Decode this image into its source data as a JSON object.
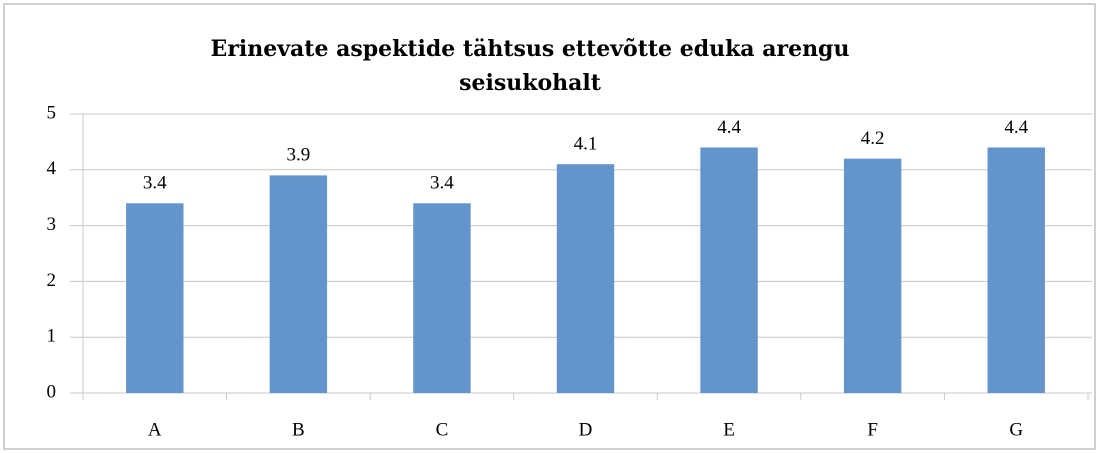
{
  "chart_data": {
    "type": "bar",
    "title": [
      "Erinevate aspektide tähtsus ettevõtte eduka arengu",
      "seisukohalt"
    ],
    "categories": [
      "A",
      "B",
      "C",
      "D",
      "E",
      "F",
      "G"
    ],
    "values": [
      3.4,
      3.9,
      3.4,
      4.1,
      4.4,
      4.2,
      4.4
    ],
    "color": "#6395cc",
    "ylim": [
      0,
      5
    ],
    "yticks": [
      0,
      1,
      2,
      3,
      4,
      5
    ],
    "grid": true
  }
}
